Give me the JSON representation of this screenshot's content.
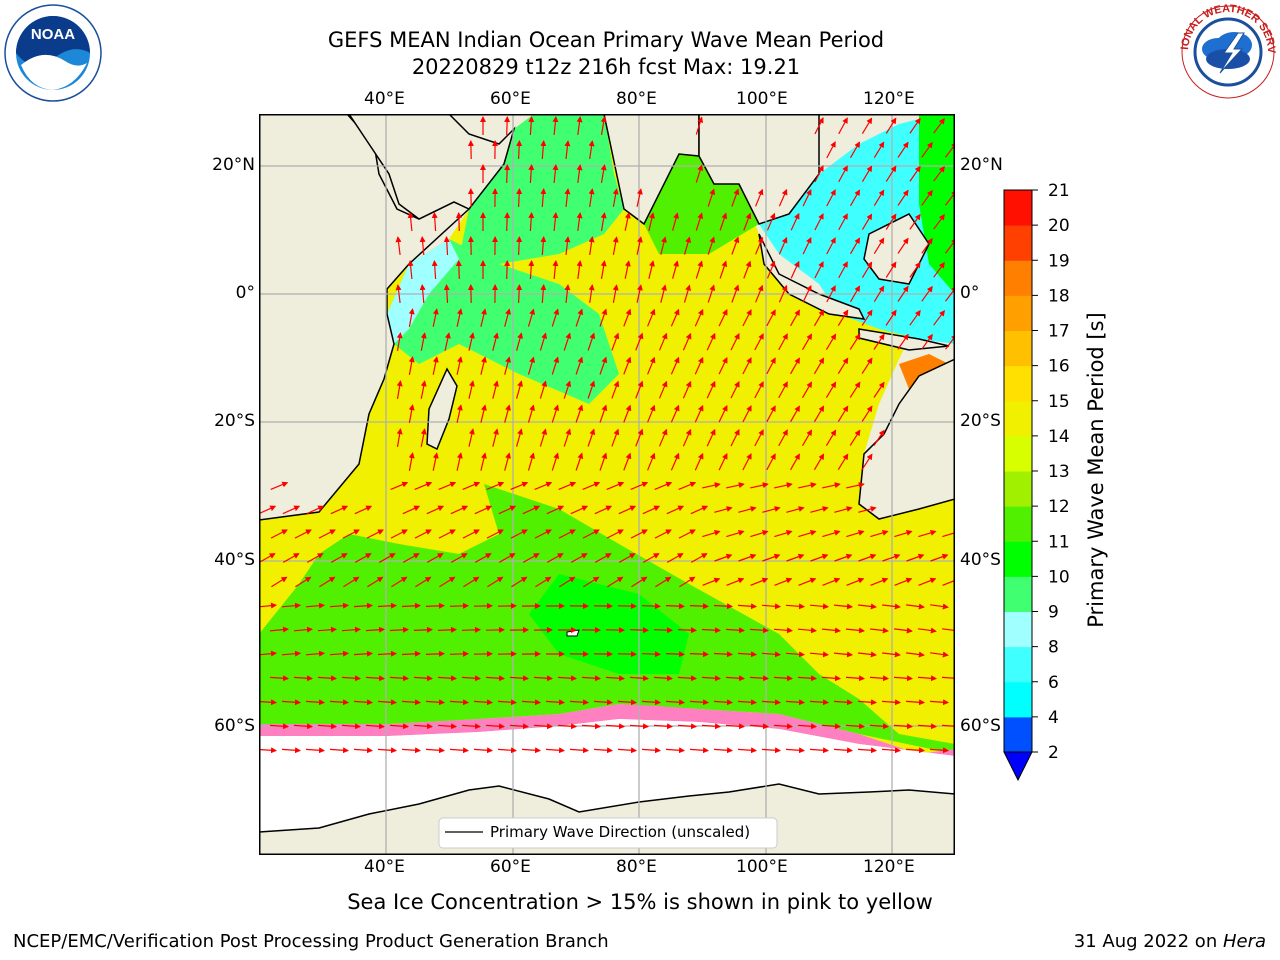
{
  "header": {
    "title_line1": "GEFS MEAN Indian Ocean Primary Wave Mean Period",
    "title_line2": "20220829 t12z 216h fcst   Max: 19.21"
  },
  "logos": {
    "noaa": {
      "text": "NOAA",
      "ring_text": "NATIONAL OCEANIC AND ATMOSPHERIC ADMINISTRATION · U.S. DEPARTMENT OF COMMERCE"
    },
    "nws": {
      "ring_text": "NATIONAL WEATHER SERVICE"
    }
  },
  "map": {
    "lon_ticks": [
      "40°E",
      "60°E",
      "80°E",
      "100°E",
      "120°E"
    ],
    "lat_ticks_left": [
      "20°N",
      "0°",
      "20°S",
      "40°S",
      "60°S"
    ],
    "lat_ticks_right": [
      "20°N",
      "0°",
      "20°S",
      "40°S",
      "60°S"
    ],
    "legend_label": "Primary Wave Direction (unscaled)",
    "land_color": "#efeddc",
    "arrow_color": "#ff0000"
  },
  "colorbar": {
    "label": "Primary Wave Mean Period [s]",
    "levels": [
      "2",
      "4",
      "6",
      "8",
      "9",
      "10",
      "11",
      "12",
      "13",
      "14",
      "15",
      "16",
      "17",
      "18",
      "19",
      "20",
      "21"
    ],
    "colors": [
      "#0050ff",
      "#00c8ff",
      "#00ffff",
      "#40ffff",
      "#a0ffff",
      "#40ff70",
      "#00ff00",
      "#50f000",
      "#a0f000",
      "#d8ff00",
      "#f0f000",
      "#ffe000",
      "#ffc000",
      "#ffa000",
      "#ff8000",
      "#ff4000",
      "#ff1000",
      "#ff0000"
    ],
    "under_color": "#0000ff"
  },
  "caption": "Sea Ice Concentration > 15% is shown in pink to yellow",
  "footer": {
    "left": "NCEP/EMC/Verification Post Processing Product Generation Branch",
    "right_date": "31 Aug 2022 on ",
    "right_machine": "Hera"
  }
}
